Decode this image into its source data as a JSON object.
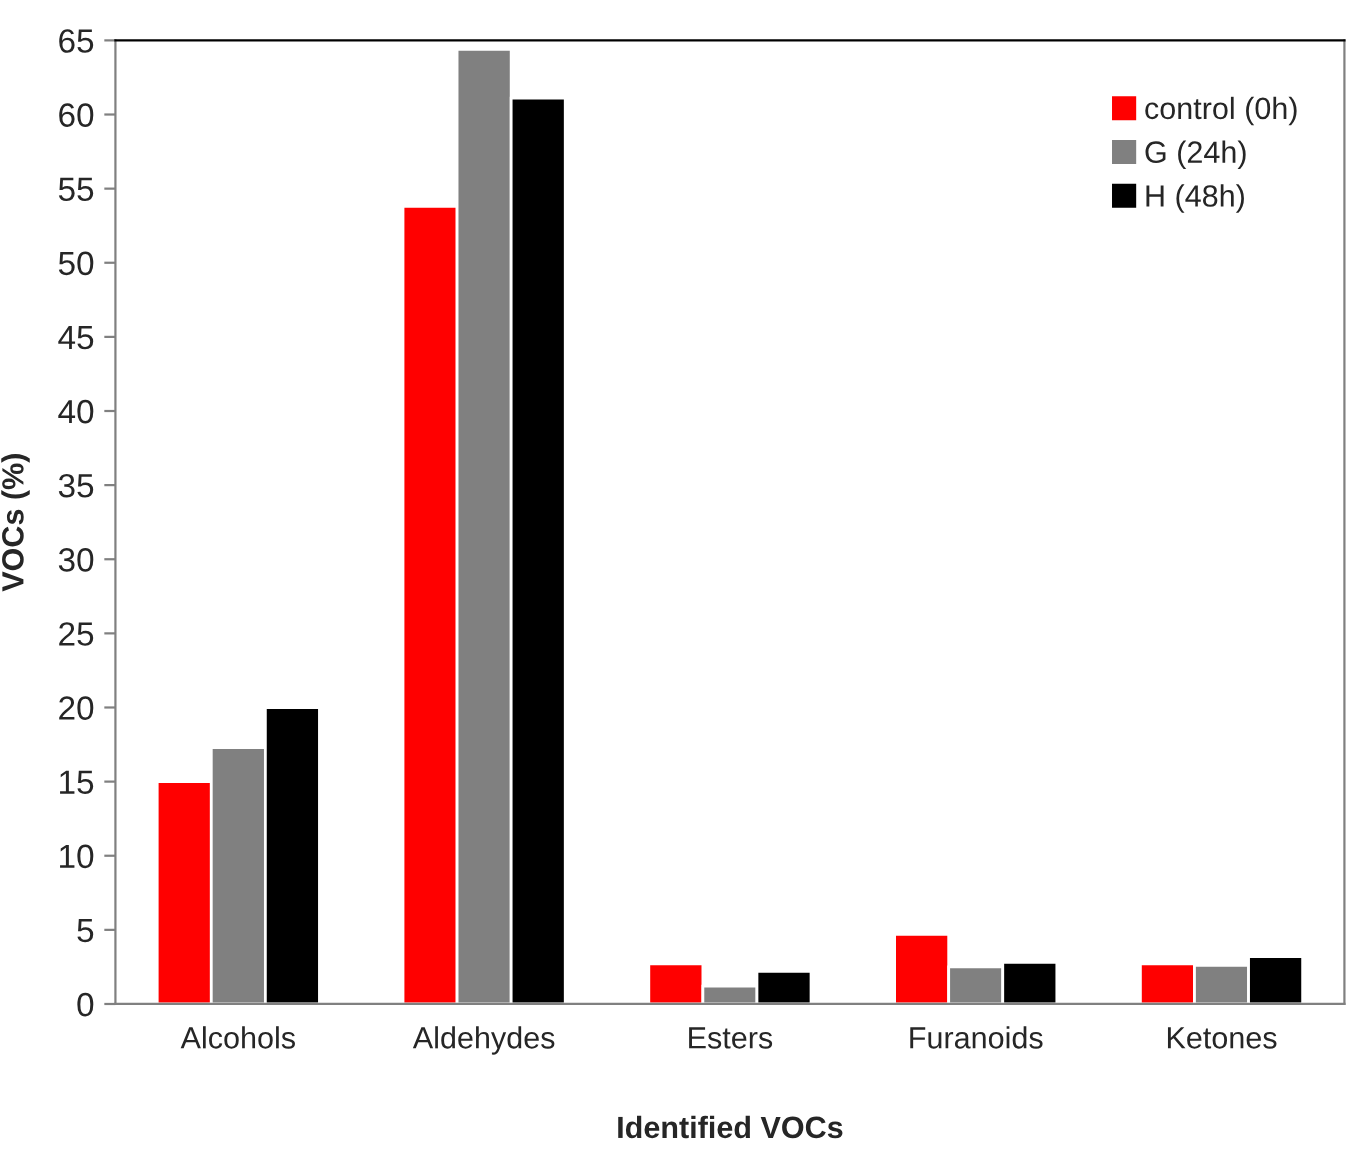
{
  "chart_data": {
    "type": "bar",
    "xlabel": "Identified VOCs",
    "ylabel": "VOCs (%)",
    "categories": [
      "Alcohols",
      "Aldehydes",
      "Esters",
      "Furanoids",
      "Ketones"
    ],
    "series": [
      {
        "name": "control (0h)",
        "color": "#ff0000",
        "values": [
          15.0,
          53.8,
          2.7,
          4.7,
          2.7
        ]
      },
      {
        "name": "G (24h)",
        "color": "#808080",
        "values": [
          17.3,
          64.4,
          1.2,
          2.5,
          2.6
        ]
      },
      {
        "name": "H (48h)",
        "color": "#000000",
        "values": [
          20.0,
          61.1,
          2.2,
          2.8,
          3.2
        ]
      }
    ],
    "ylim": [
      0,
      65
    ],
    "yticks": [
      0,
      5,
      10,
      15,
      20,
      25,
      30,
      35,
      40,
      45,
      50,
      55,
      60,
      65
    ],
    "grid": false,
    "legend": "top right"
  }
}
